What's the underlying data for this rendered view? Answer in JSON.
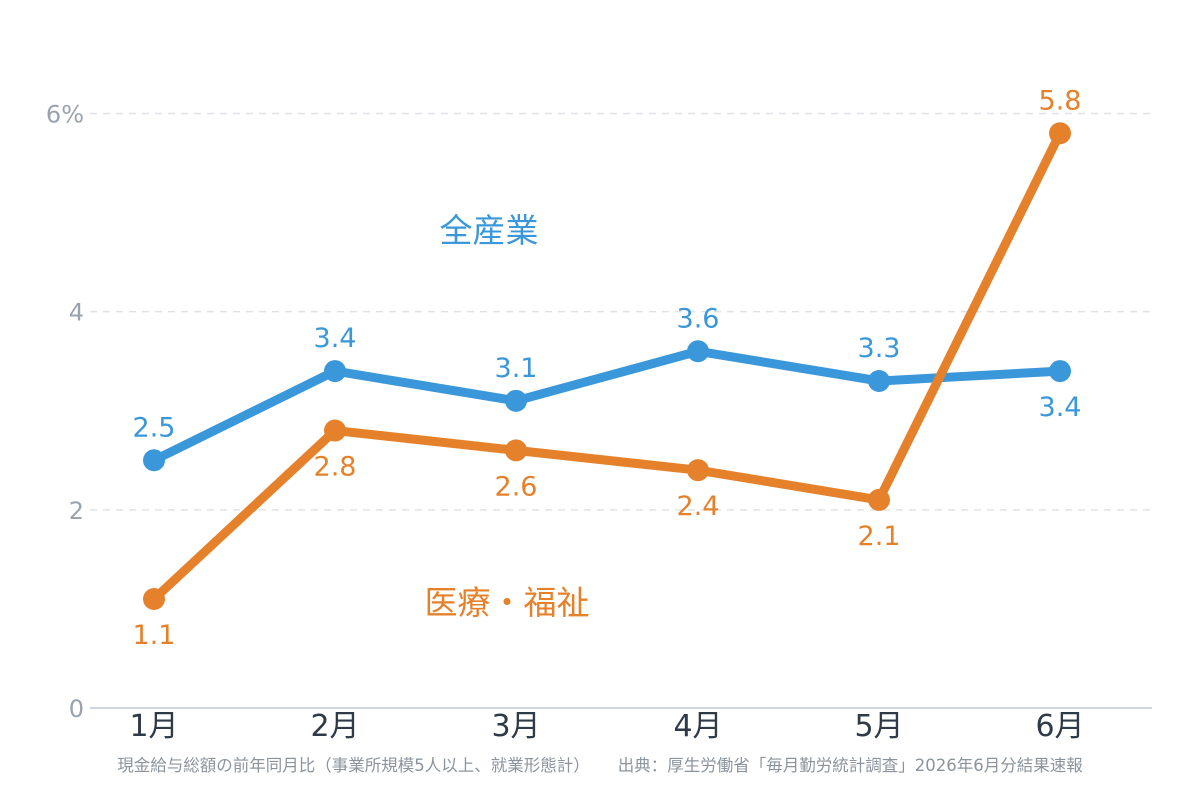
{
  "chart_data": {
    "type": "line",
    "categories": [
      "1月",
      "2月",
      "3月",
      "4月",
      "5月",
      "6月"
    ],
    "y_ticks": [
      "0",
      "2",
      "4",
      "6%"
    ],
    "ylim": [
      0,
      6.6
    ],
    "grid": true,
    "series": [
      {
        "name": "全産業",
        "color": "#3a97d9",
        "values": [
          2.5,
          3.4,
          3.1,
          3.6,
          3.3,
          3.4
        ],
        "labels": [
          "2.5",
          "3.4",
          "3.1",
          "3.6",
          "3.3",
          "3.4"
        ],
        "label_positions": [
          "above",
          "above",
          "above",
          "above",
          "above",
          "below"
        ]
      },
      {
        "name": "医療・福祉",
        "color": "#e6812b",
        "values": [
          1.1,
          2.8,
          2.6,
          2.4,
          2.1,
          5.8
        ],
        "labels": [
          "1.1",
          "2.8",
          "2.6",
          "2.4",
          "2.1",
          "5.8"
        ],
        "label_positions": [
          "below",
          "below",
          "below",
          "below",
          "below",
          "above"
        ]
      }
    ],
    "notes": {
      "left": "現金給与総額の前年同月比（事業所規模5人以上、就業形態計）",
      "right": "出典：厚生労働省「毎月勤労統計調査」2026年6月分結果速報"
    }
  }
}
